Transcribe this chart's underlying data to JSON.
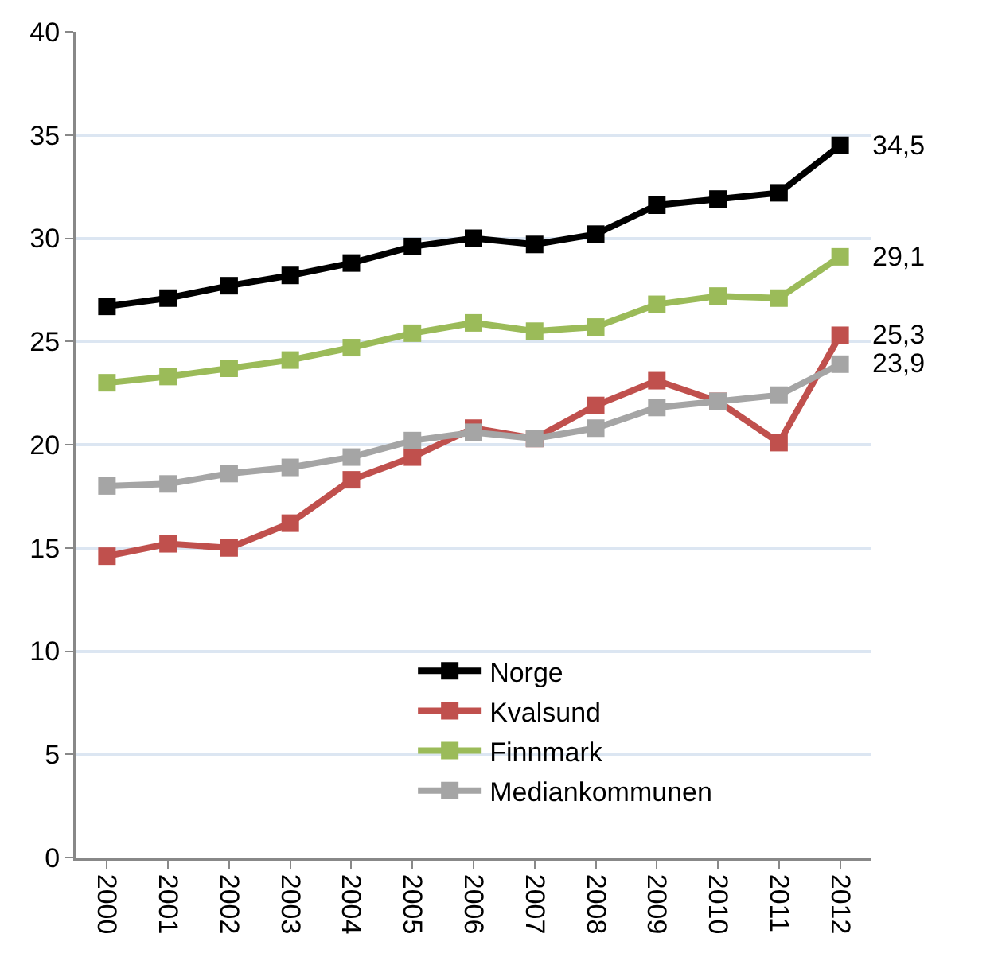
{
  "chart_data": {
    "type": "line",
    "categories": [
      "2000",
      "2001",
      "2002",
      "2003",
      "2004",
      "2005",
      "2006",
      "2007",
      "2008",
      "2009",
      "2010",
      "2011",
      "2012"
    ],
    "series": [
      {
        "name": "Norge",
        "color": "#000000",
        "values": [
          26.7,
          27.1,
          27.7,
          28.2,
          28.8,
          29.6,
          30.0,
          29.7,
          30.2,
          31.6,
          31.9,
          32.2,
          34.5
        ]
      },
      {
        "name": "Kvalsund",
        "color": "#c0504d",
        "values": [
          14.6,
          15.2,
          15.0,
          16.2,
          18.3,
          19.4,
          20.8,
          20.3,
          21.9,
          23.1,
          22.1,
          20.1,
          25.3
        ]
      },
      {
        "name": "Finnmark",
        "color": "#9bbb59",
        "values": [
          23.0,
          23.3,
          23.7,
          24.1,
          24.7,
          25.4,
          25.9,
          25.5,
          25.7,
          26.8,
          27.2,
          27.1,
          29.1
        ]
      },
      {
        "name": "Mediankommunen",
        "color": "#a5a5a5",
        "values": [
          18.0,
          18.1,
          18.6,
          18.9,
          19.4,
          20.2,
          20.6,
          20.3,
          20.8,
          21.8,
          22.1,
          22.4,
          23.9
        ]
      }
    ],
    "annotations": [
      {
        "text": "34,5",
        "x": "2012",
        "y": 34.5
      },
      {
        "text": "29,1",
        "x": "2012",
        "y": 29.1
      },
      {
        "text": "25,3",
        "x": "2012",
        "y": 25.3
      },
      {
        "text": "23,9",
        "x": "2012",
        "y": 23.9
      }
    ],
    "ylim": [
      0,
      40
    ],
    "yticks": [
      0,
      5,
      10,
      15,
      20,
      25,
      30,
      35,
      40
    ],
    "grid": "y",
    "legend": "bottom",
    "marker": "square",
    "line_style": "solid"
  }
}
